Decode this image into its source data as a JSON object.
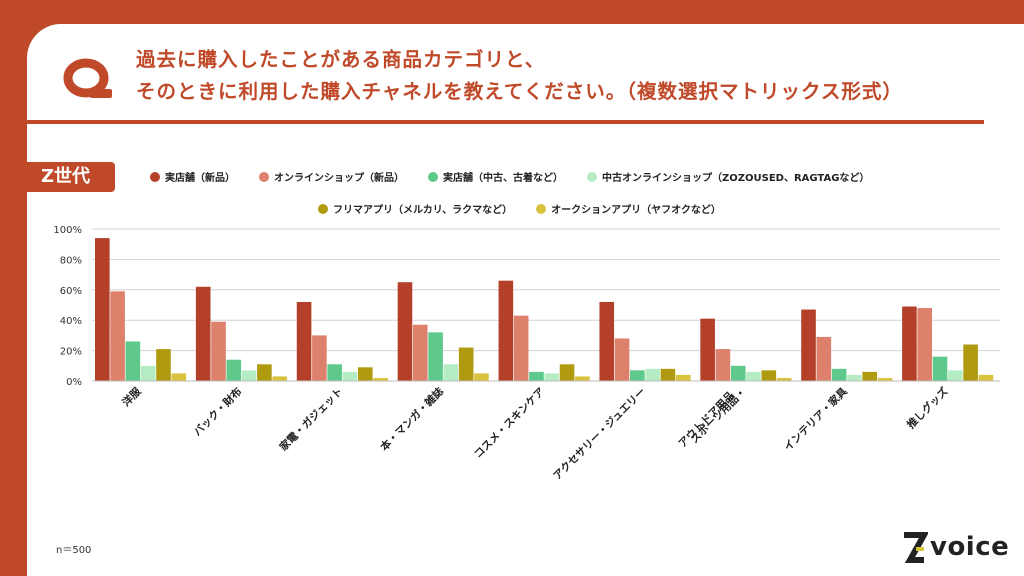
{
  "header": {
    "question_line1": "過去に購入したことがある商品カテゴリと、",
    "question_line2": "そのときに利用した購入チャネルを教えてください。（複数選択マトリックス形式）",
    "q_icon": "q-letter-icon"
  },
  "badge": {
    "label": "Z世代"
  },
  "footer": {
    "sample": "n＝500",
    "brand": "voice"
  },
  "colors": {
    "brand": "#c0492a",
    "series": [
      "#b5402a",
      "#dd806c",
      "#5ec98a",
      "#b6ecc4",
      "#b09a10",
      "#d9c23c"
    ]
  },
  "chart_data": {
    "type": "bar",
    "categories": [
      "洋服",
      "バック・財布",
      "家電・ガジェット",
      "本・マンガ・雑誌",
      "コスメ・スキンケア",
      "アクセサリー・ジュエリー",
      "スポーツ用品・アウトドア用品",
      "インテリア・家具",
      "推しグッズ"
    ],
    "series": [
      {
        "name": "実店舗（新品）",
        "values": [
          94,
          62,
          52,
          65,
          66,
          52,
          41,
          47,
          49
        ]
      },
      {
        "name": "オンラインショップ（新品）",
        "values": [
          59,
          39,
          30,
          37,
          43,
          28,
          21,
          29,
          48
        ]
      },
      {
        "name": "実店舗（中古、古着など）",
        "values": [
          26,
          14,
          11,
          32,
          6,
          7,
          10,
          8,
          16
        ]
      },
      {
        "name": "中古オンラインショップ（ZOZOUSED、RAGTAGなど）",
        "values": [
          10,
          7,
          6,
          11,
          5,
          8,
          6,
          4,
          7
        ]
      },
      {
        "name": "フリマアプリ（メルカリ、ラクマなど）",
        "values": [
          21,
          11,
          9,
          22,
          11,
          8,
          7,
          6,
          24
        ]
      },
      {
        "name": "オークションアプリ（ヤフオクなど）",
        "values": [
          5,
          3,
          2,
          5,
          3,
          4,
          2,
          2,
          4
        ]
      }
    ],
    "yticks": [
      "100%",
      "80%",
      "60%",
      "40%",
      "20%",
      "0%"
    ],
    "ylim": [
      0,
      100
    ],
    "grid": true,
    "legend_position": "top"
  }
}
